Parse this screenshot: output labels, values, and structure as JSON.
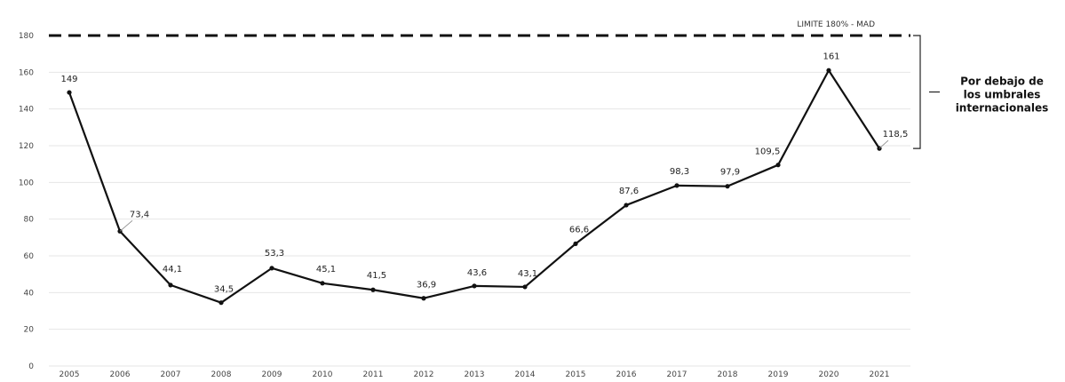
{
  "chart_data": {
    "type": "line",
    "title": "",
    "xlabel": "",
    "ylabel": "",
    "x": [
      "2005",
      "2006",
      "2007",
      "2008",
      "2009",
      "2010",
      "2011",
      "2012",
      "2013",
      "2014",
      "2015",
      "2016",
      "2017",
      "2018",
      "2019",
      "2020",
      "2021"
    ],
    "series": [
      {
        "values": [
          149,
          73.4,
          44.1,
          34.5,
          53.3,
          45.1,
          41.5,
          36.9,
          43.6,
          43.1,
          66.6,
          87.6,
          98.3,
          97.9,
          109.5,
          161,
          118.5
        ]
      }
    ],
    "data_labels": [
      "149",
      "73,4",
      "44,1",
      "34,5",
      "53,3",
      "45,1",
      "41,5",
      "36,9",
      "43,6",
      "43,1",
      "66,6",
      "87,6",
      "98,3",
      "97,9",
      "109,5",
      "161",
      "118,5"
    ],
    "ylim": [
      0,
      180
    ],
    "yticks": [
      0,
      20,
      40,
      60,
      80,
      100,
      120,
      140,
      160,
      180
    ],
    "grid": true,
    "line_color": "#111111",
    "limit_line": {
      "value": 180,
      "label": "LIMITE 180% - MAD",
      "style": "dashed",
      "color": "#111111"
    },
    "bracket_note": {
      "lines": [
        "Por debajo de",
        "los umbrales",
        "internacionales"
      ],
      "from": 118.5,
      "to": 180
    }
  }
}
